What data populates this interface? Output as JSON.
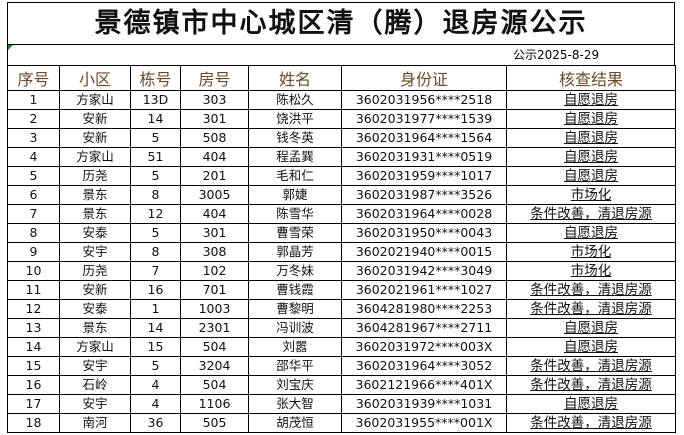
{
  "title": "景德镇市中心城区清（腾）退房源公示",
  "date": "公示2025-8-29",
  "headers": [
    "序号",
    "小区",
    "栋号",
    "房号",
    "姓名",
    "身份证",
    "核查结果"
  ],
  "rows": [
    [
      "1",
      "方家山",
      "13D",
      "303",
      "陈松久",
      "3602031956****2518",
      "自愿退房"
    ],
    [
      "2",
      "安新",
      "14",
      "301",
      "饶洪平",
      "3602031977****1539",
      "自愿退房"
    ],
    [
      "3",
      "安新",
      "5",
      "508",
      "钱冬英",
      "3602031964****1564",
      "自愿退房"
    ],
    [
      "4",
      "方家山",
      "51",
      "404",
      "程孟巽",
      "3602031931****0519",
      "自愿退房"
    ],
    [
      "5",
      "历尧",
      "5",
      "201",
      "毛和仁",
      "3602031959****1017",
      "自愿退房"
    ],
    [
      "6",
      "景东",
      "8",
      "3005",
      "郭婕",
      "3602031987****3526",
      "市场化"
    ],
    [
      "7",
      "景东",
      "12",
      "404",
      "陈雪华",
      "3602031964****0028",
      "条件改善，清退房源"
    ],
    [
      "8",
      "安泰",
      "5",
      "301",
      "曹雪荣",
      "3602031950****0043",
      "自愿退房"
    ],
    [
      "9",
      "安宇",
      "8",
      "308",
      "郭晶芳",
      "3602021940****0015",
      "市场化"
    ],
    [
      "10",
      "历尧",
      "7",
      "102",
      "万冬妹",
      "3602031942****3049",
      "市场化"
    ],
    [
      "11",
      "安新",
      "16",
      "701",
      "曹钱霞",
      "3602021961****1027",
      "条件改善，清退房源"
    ],
    [
      "12",
      "安泰",
      "1",
      "1003",
      "曹黎明",
      "3604281980****2253",
      "条件改善，清退房源"
    ],
    [
      "13",
      "景东",
      "14",
      "2301",
      "冯训波",
      "3604281967****2711",
      "自愿退房"
    ],
    [
      "14",
      "方家山",
      "15",
      "504",
      "刘嚣",
      "3602031972****003X",
      "自愿退房"
    ],
    [
      "15",
      "安宇",
      "5",
      "3204",
      "邵华平",
      "3602031964****3052",
      "条件改善，清退房源"
    ],
    [
      "16",
      "石岭",
      "4",
      "504",
      "刘宝庆",
      "3602121966****401X",
      "条件改善，清退房源"
    ],
    [
      "17",
      "安宇",
      "4",
      "1106",
      "张大智",
      "3602031939****1031",
      "自愿退房"
    ],
    [
      "18",
      "南河",
      "36",
      "505",
      "胡茂恒",
      "3602031955****001X",
      "条件改善，清退房源"
    ]
  ]
}
